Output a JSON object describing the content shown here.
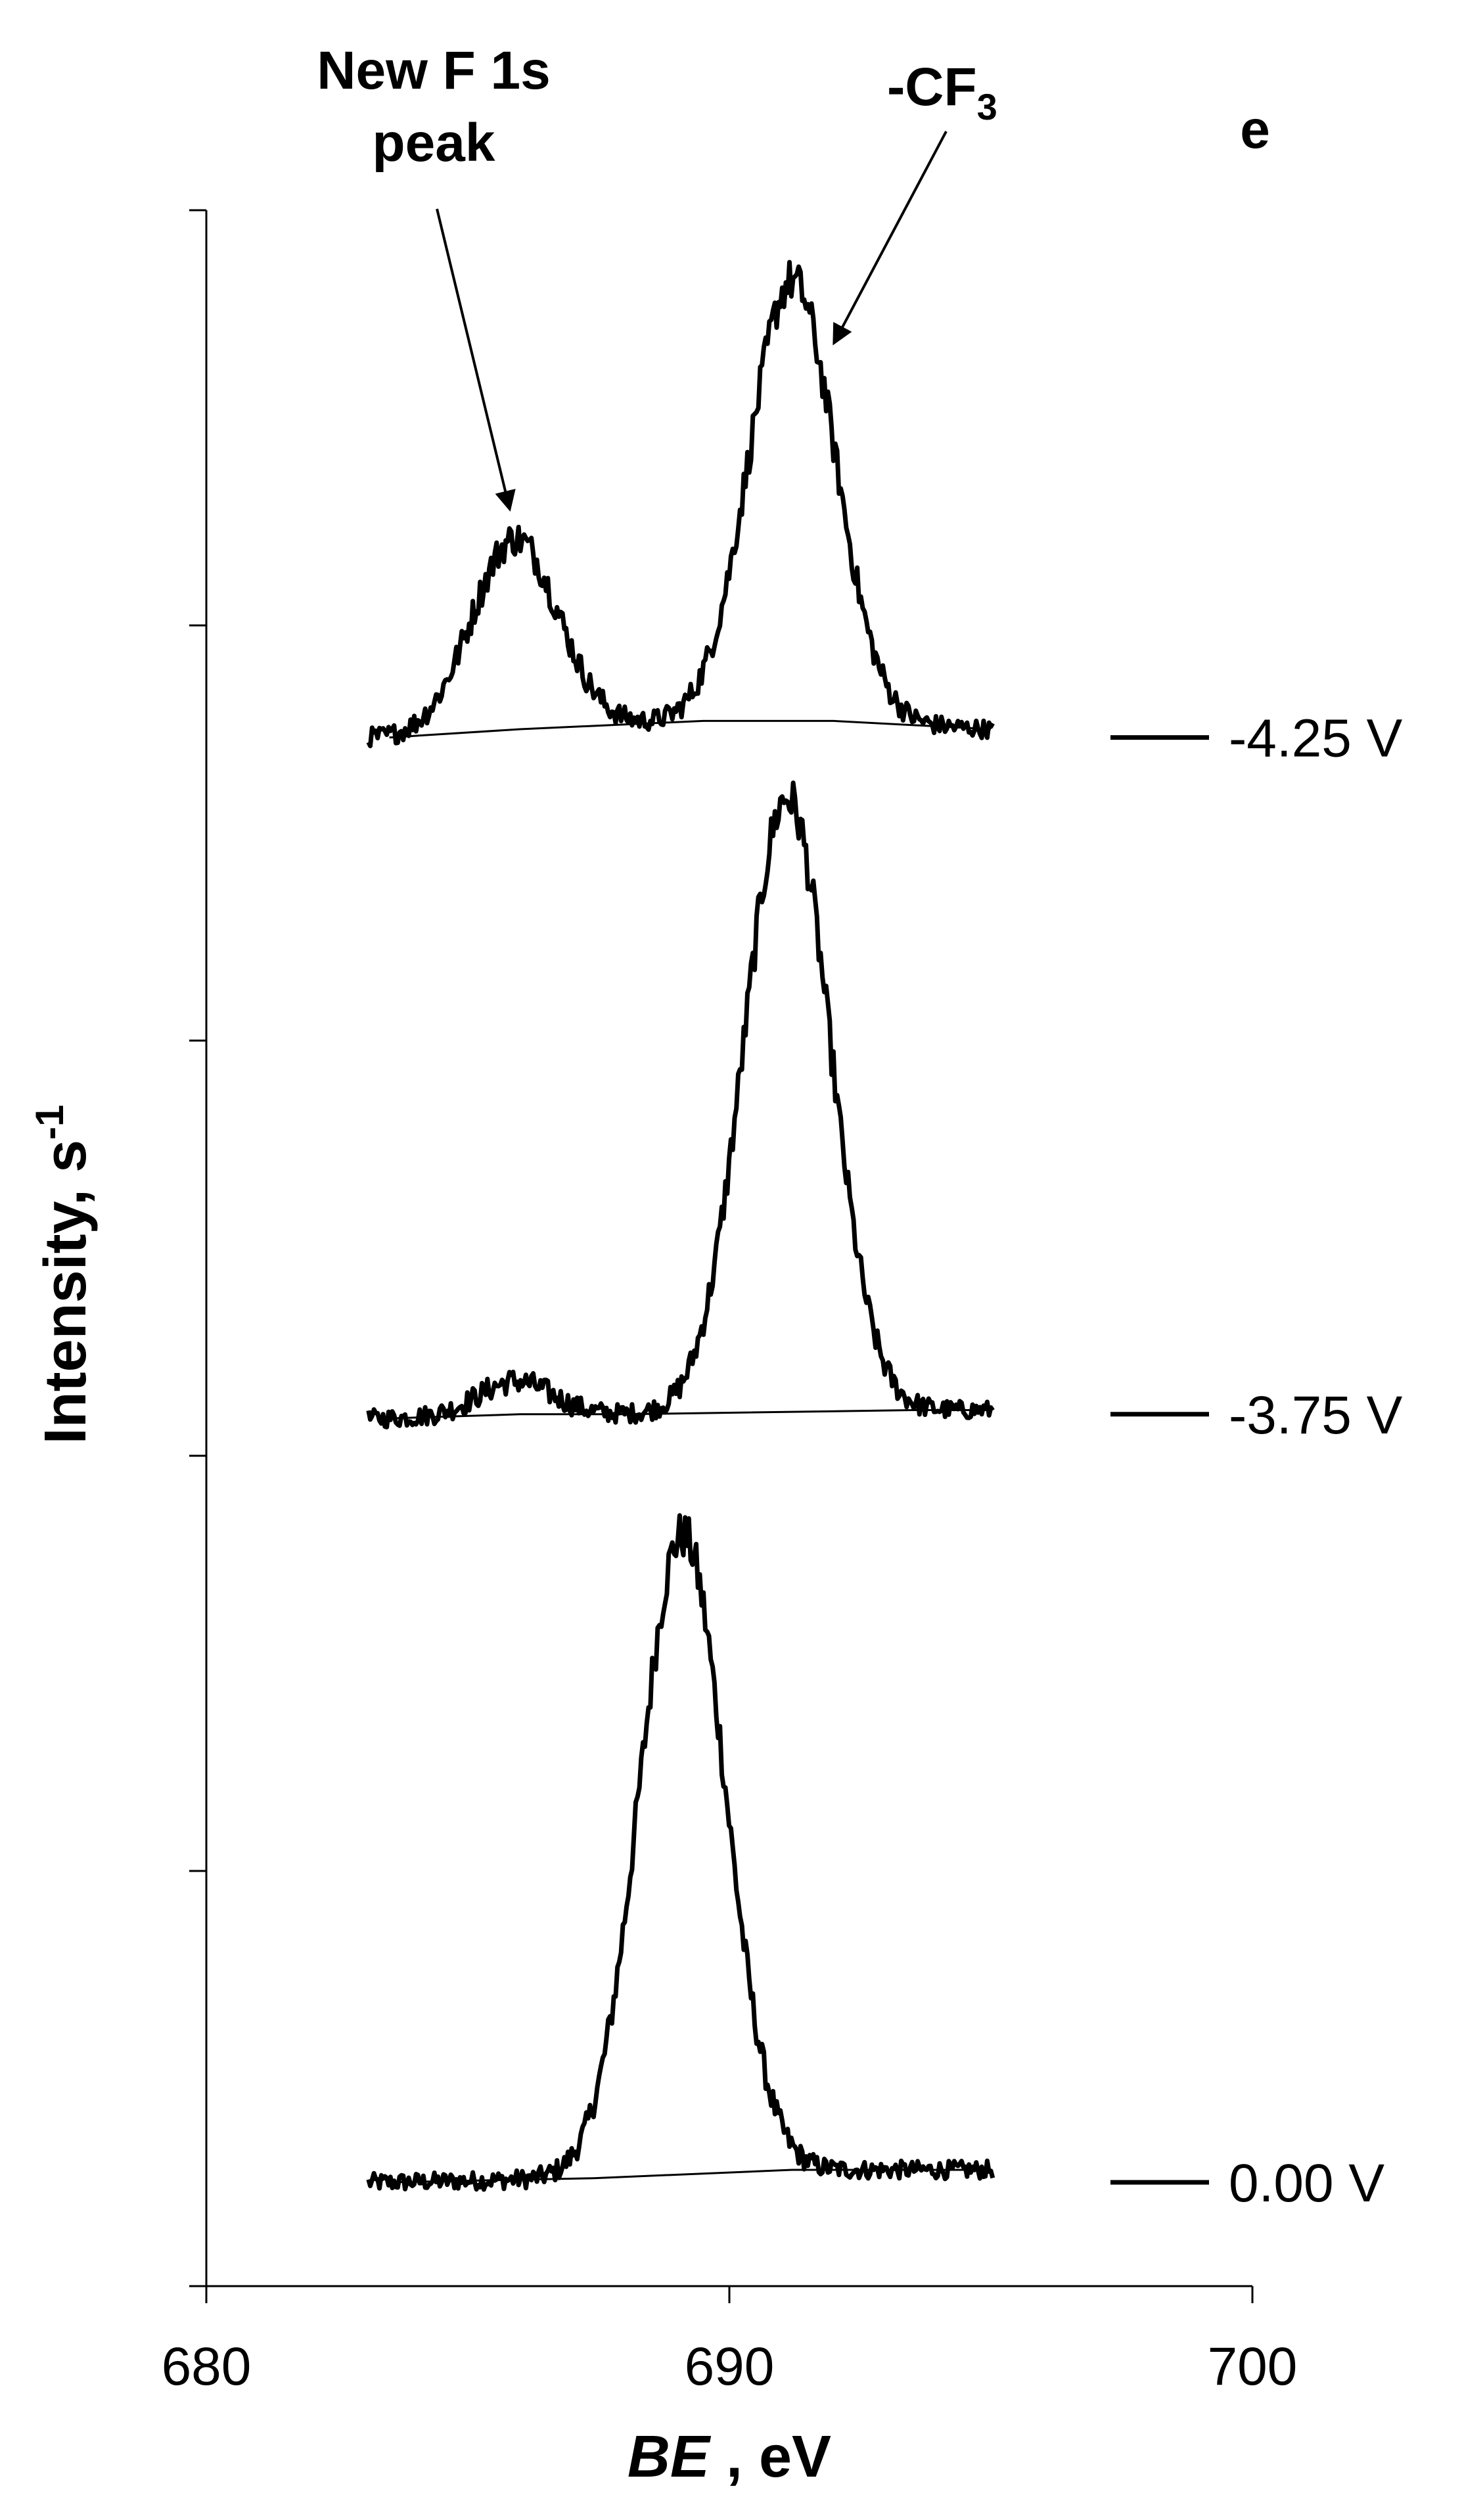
{
  "chart_data": {
    "type": "line",
    "title": "",
    "panel_label": "e",
    "xlabel": {
      "italic": "BE",
      "rest": " , eV"
    },
    "ylabel": {
      "base": "Intensity, s",
      "sup": "-1"
    },
    "xlim": [
      680,
      700
    ],
    "x_ticks": [
      "680",
      "690",
      "700"
    ],
    "ylim": [
      0,
      5
    ],
    "y_ticks_unlabeled": [
      0,
      1,
      2,
      3,
      4,
      5
    ],
    "grid": false,
    "legend_placement": "right, beside each trace",
    "series_color": "#000000",
    "series": [
      {
        "name": "0.00 V",
        "legend_y": 0.25,
        "offset": 0.25,
        "peaks": [
          {
            "center": 689.1,
            "height": 1.54,
            "sigma": 0.82
          }
        ],
        "baseline": [
          [
            683.5,
            0.25
          ],
          [
            687.4,
            0.26
          ],
          [
            691.2,
            0.28
          ],
          [
            695.0,
            0.28
          ]
        ]
      },
      {
        "name": "-3.75 V",
        "legend_y": 2.1,
        "offset": 2.1,
        "peaks": [
          {
            "center": 685.9,
            "height": 0.08,
            "sigma": 0.7
          },
          {
            "center": 691.1,
            "height": 1.48,
            "sigma": 0.82
          }
        ],
        "baseline": [
          [
            683.5,
            2.09
          ],
          [
            686.0,
            2.1
          ],
          [
            688.0,
            2.1
          ],
          [
            693.5,
            2.11
          ],
          [
            695.0,
            2.11
          ]
        ]
      },
      {
        "name": "-4.25 V",
        "legend_y": 3.73,
        "offset": 3.73,
        "peaks": [
          {
            "center": 685.9,
            "height": 0.46,
            "sigma": 0.82
          },
          {
            "center": 691.2,
            "height": 1.06,
            "sigma": 0.82
          }
        ],
        "baseline": [
          [
            683.5,
            3.73
          ],
          [
            686.0,
            3.75
          ],
          [
            689.5,
            3.77
          ],
          [
            692.0,
            3.77
          ],
          [
            695.0,
            3.75
          ]
        ]
      }
    ],
    "annotations": [
      {
        "lines": [
          "New F 1s",
          "peak"
        ],
        "points_to": {
          "x": 685.8,
          "y": 4.28
        }
      },
      {
        "base": "-CF",
        "sub": "3",
        "points_to": {
          "x": 692.0,
          "y": 4.68
        }
      }
    ]
  }
}
